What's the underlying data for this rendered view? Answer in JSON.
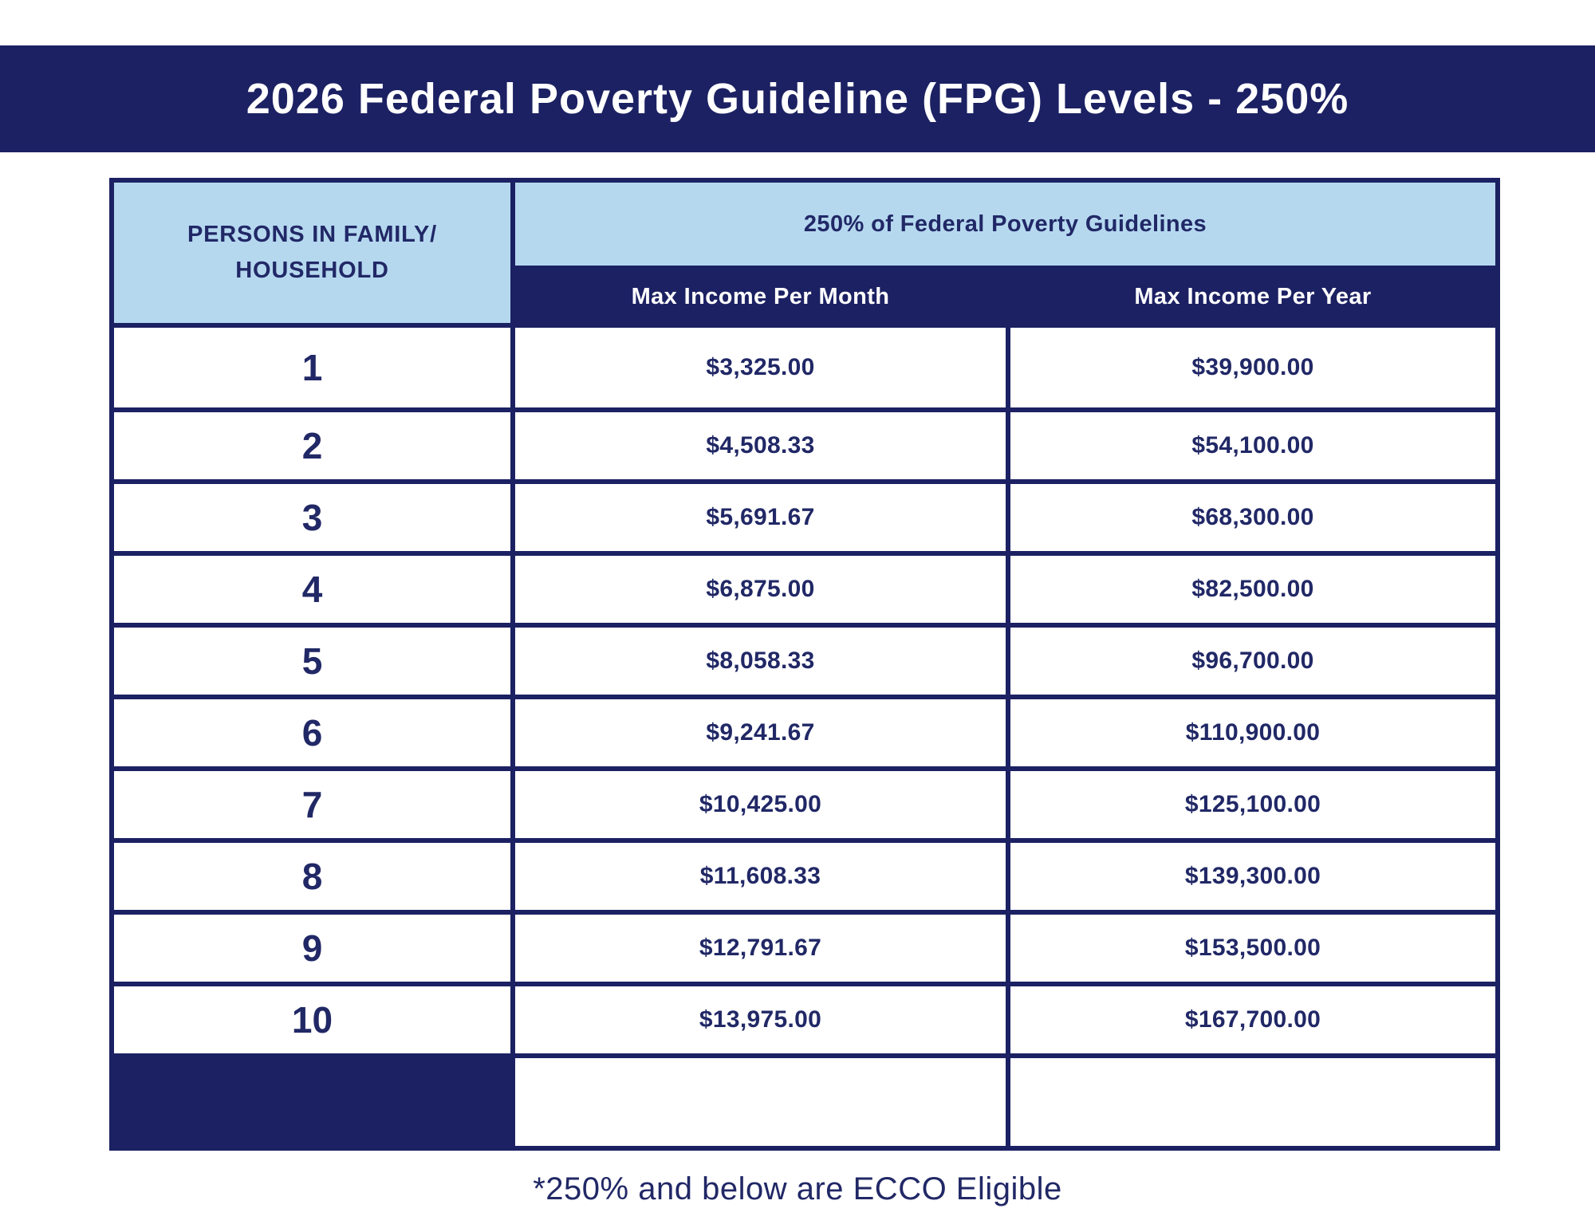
{
  "banner": {
    "title": "2026 Federal Poverty Guideline (FPG) Levels - 250%",
    "bg_color": "#1c2163",
    "text_color": "#ffffff"
  },
  "table": {
    "colors": {
      "navy": "#1c2163",
      "light_blue": "#b5d8ef",
      "cell_text": "#212866",
      "cell_bg": "#ffffff"
    },
    "header": {
      "col1_line1": "PERSONS IN FAMILY/",
      "col1_line2": "HOUSEHOLD",
      "group_header": "250% of Federal Poverty Guidelines",
      "month_header": "Max Income Per Month",
      "year_header": "Max Income Per Year"
    },
    "rows": [
      {
        "persons": "1",
        "month": "$3,325.00",
        "year": "$39,900.00"
      },
      {
        "persons": "2",
        "month": "$4,508.33",
        "year": "$54,100.00"
      },
      {
        "persons": "3",
        "month": "$5,691.67",
        "year": "$68,300.00"
      },
      {
        "persons": "4",
        "month": "$6,875.00",
        "year": "$82,500.00"
      },
      {
        "persons": "5",
        "month": "$8,058.33",
        "year": "$96,700.00"
      },
      {
        "persons": "6",
        "month": "$9,241.67",
        "year": "$110,900.00"
      },
      {
        "persons": "7",
        "month": "$10,425.00",
        "year": "$125,100.00"
      },
      {
        "persons": "8",
        "month": "$11,608.33",
        "year": "$139,300.00"
      },
      {
        "persons": "9",
        "month": "$12,791.67",
        "year": "$153,500.00"
      },
      {
        "persons": "10",
        "month": "$13,975.00",
        "year": "$167,700.00"
      }
    ]
  },
  "footer": {
    "note": "*250% and below are ECCO Eligible"
  }
}
